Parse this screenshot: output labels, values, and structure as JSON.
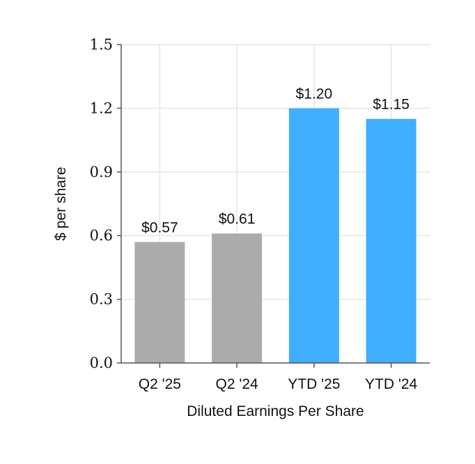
{
  "chart_data": {
    "type": "bar",
    "categories": [
      "Q2 '25",
      "Q2 '24",
      "YTD '25",
      "YTD '24"
    ],
    "values": [
      0.57,
      0.61,
      1.2,
      1.15
    ],
    "data_labels": [
      "$0.57",
      "$0.61",
      "$1.20",
      "$1.15"
    ],
    "colors": [
      "#ababab",
      "#ababab",
      "#3faeff",
      "#3faeff"
    ],
    "title": "",
    "xlabel": "Diluted Earnings Per Share",
    "ylabel": "$ per share",
    "ylim": [
      0,
      1.5
    ],
    "yticks": [
      0.0,
      0.3,
      0.6,
      0.9,
      1.2,
      1.5
    ],
    "ytick_labels": [
      "0.0",
      "0.3",
      "0.6",
      "0.9",
      "1.2",
      "1.5"
    ],
    "grid": true,
    "grid_color": "#e6e6e6",
    "axis_color": "#555555"
  }
}
